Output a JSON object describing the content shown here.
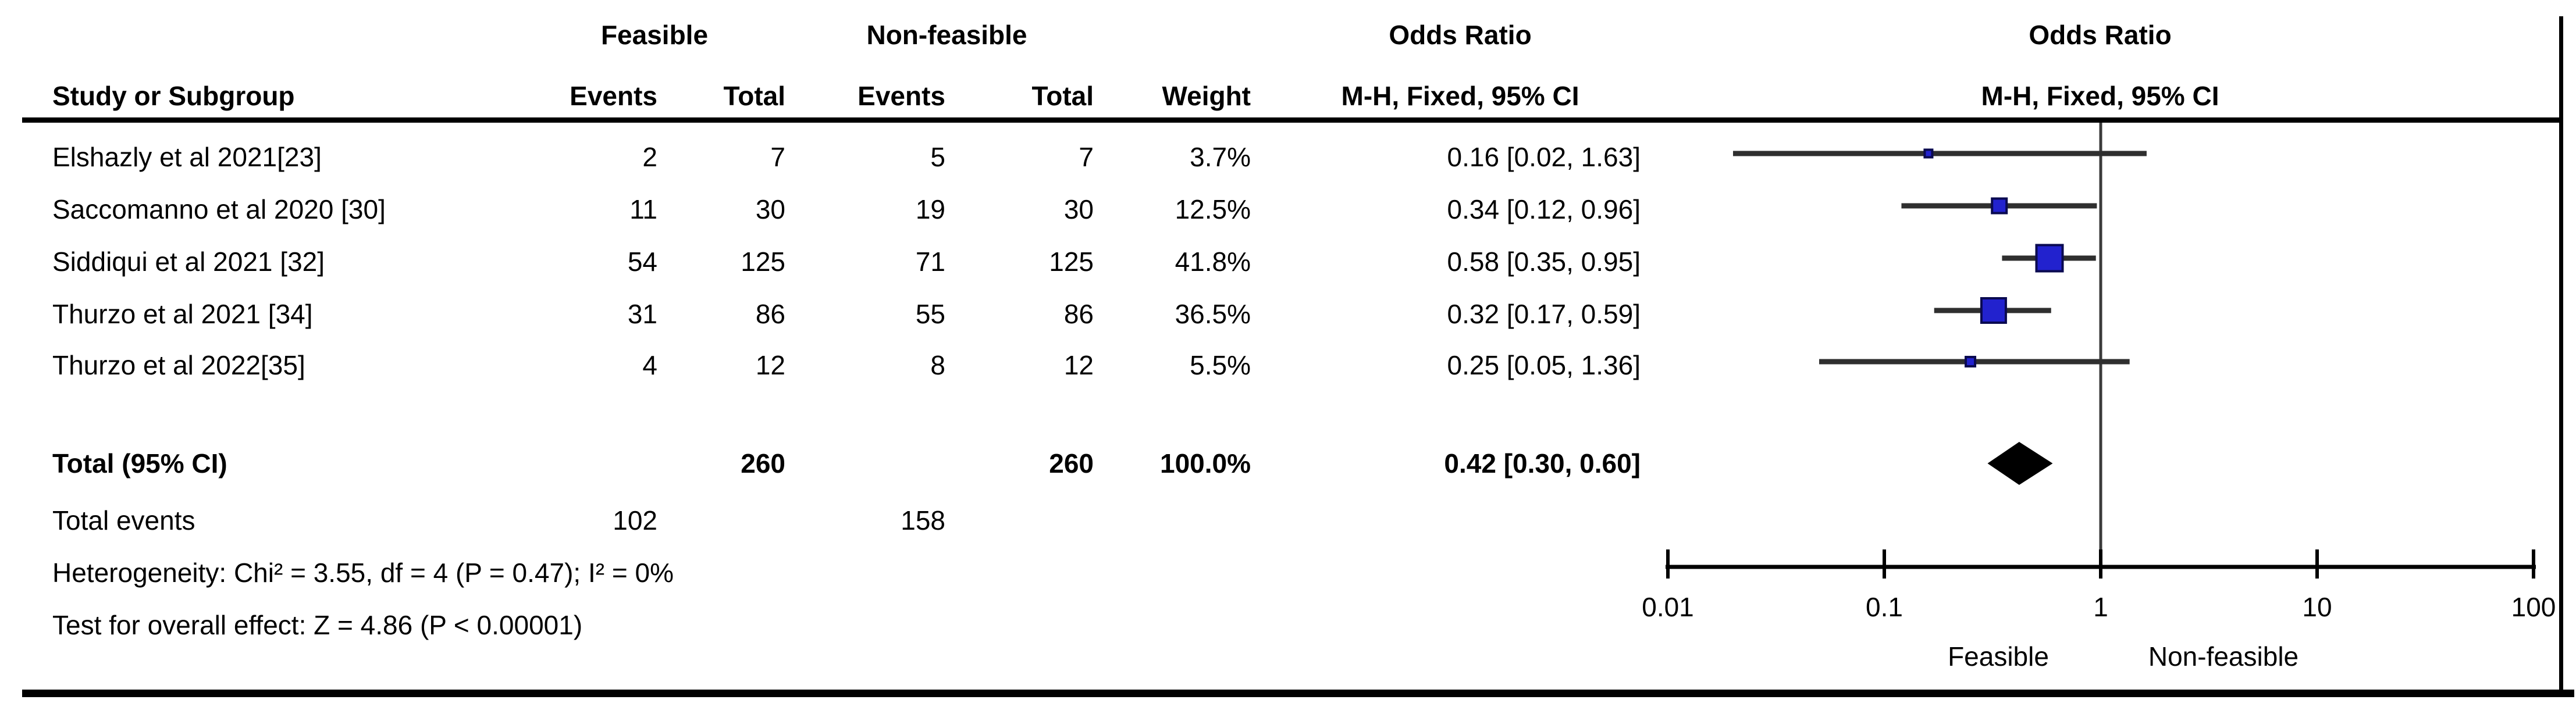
{
  "header": {
    "study_col": "Study or Subgroup",
    "group_feasible": "Feasible",
    "group_non_feasible": "Non-feasible",
    "events_col_feasible": "Events",
    "total_col_feasible": "Total",
    "events_col_non_feasible": "Events",
    "total_col_non_feasible": "Total",
    "weight_col": "Weight",
    "odds_ratio_text_col": "Odds Ratio",
    "method_text_col": "M-H, Fixed, 95% CI",
    "odds_ratio_plot_col": "Odds Ratio",
    "method_plot_col": "M-H, Fixed, 95% CI"
  },
  "chart_data": {
    "type": "forest",
    "effect_measure": "Odds Ratio, M-H, Fixed, 95% CI",
    "x_axis": {
      "scale": "log",
      "tick_labels": [
        "0.01",
        "0.1",
        "1",
        "10",
        "100"
      ],
      "tick_values": [
        0.01,
        0.1,
        1,
        10,
        100
      ],
      "range": [
        0.01,
        100
      ],
      "left_label": "Feasible",
      "right_label": "Non-feasible"
    },
    "studies": [
      {
        "name": "Elshazly et al 2021[23]",
        "feasible_events": "2",
        "feasible_total": "7",
        "non_feasible_events": "5",
        "non_feasible_total": "7",
        "weight": "3.7%",
        "weight_pct": 3.7,
        "or_text": "0.16 [0.02, 1.63]",
        "or": 0.16,
        "ci_low": 0.02,
        "ci_high": 1.63
      },
      {
        "name": "Saccomanno et al 2020 [30]",
        "feasible_events": "11",
        "feasible_total": "30",
        "non_feasible_events": "19",
        "non_feasible_total": "30",
        "weight": "12.5%",
        "weight_pct": 12.5,
        "or_text": "0.34 [0.12, 0.96]",
        "or": 0.34,
        "ci_low": 0.12,
        "ci_high": 0.96
      },
      {
        "name": "Siddiqui et al 2021 [32]",
        "feasible_events": "54",
        "feasible_total": "125",
        "non_feasible_events": "71",
        "non_feasible_total": "125",
        "weight": "41.8%",
        "weight_pct": 41.8,
        "or_text": "0.58 [0.35, 0.95]",
        "or": 0.58,
        "ci_low": 0.35,
        "ci_high": 0.95
      },
      {
        "name": "Thurzo et al 2021 [34]",
        "feasible_events": "31",
        "feasible_total": "86",
        "non_feasible_events": "55",
        "non_feasible_total": "86",
        "weight": "36.5%",
        "weight_pct": 36.5,
        "or_text": "0.32 [0.17, 0.59]",
        "or": 0.32,
        "ci_low": 0.17,
        "ci_high": 0.59
      },
      {
        "name": "Thurzo et al 2022[35]",
        "feasible_events": "4",
        "feasible_total": "12",
        "non_feasible_events": "8",
        "non_feasible_total": "12",
        "weight": "5.5%",
        "weight_pct": 5.5,
        "or_text": "0.25 [0.05, 1.36]",
        "or": 0.25,
        "ci_low": 0.05,
        "ci_high": 1.36
      }
    ],
    "total": {
      "label": "Total (95% CI)",
      "feasible_total": "260",
      "non_feasible_total": "260",
      "weight": "100.0%",
      "or_text": "0.42 [0.30, 0.60]",
      "or": 0.42,
      "ci_low": 0.3,
      "ci_high": 0.6
    },
    "total_events": {
      "label": "Total events",
      "feasible": "102",
      "non_feasible": "158"
    },
    "heterogeneity": "Heterogeneity: Chi² = 3.55, df = 4 (P = 0.47); I² = 0%",
    "overall_effect": "Test for overall effect: Z = 4.86 (P < 0.00001)",
    "colors": {
      "square_fill": "#2222CE",
      "square_border": "#0A0A50",
      "ci_line": "#2F2F2F",
      "diamond": "#000000",
      "axis": "#000000",
      "center_line": "#3A3A3A"
    }
  }
}
